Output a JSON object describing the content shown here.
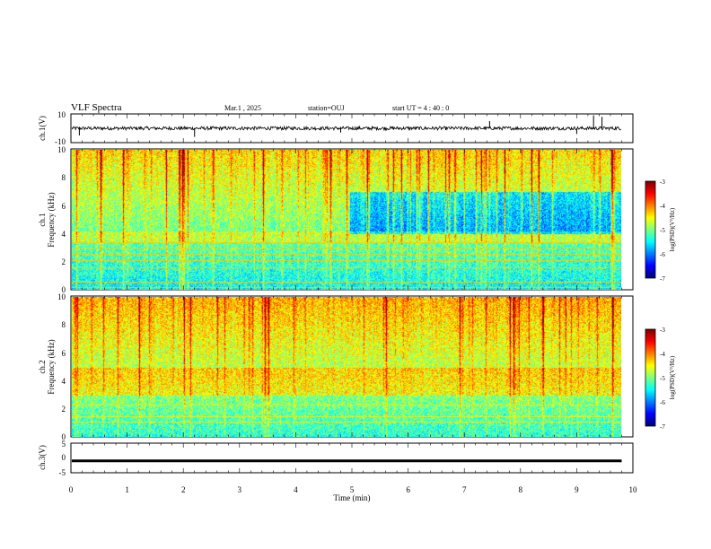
{
  "header": {
    "title": "VLF Spectra",
    "date": "Mar.1  , 2025",
    "station": "station=OUJ",
    "start_ut": "start  UT  =   4 : 40 : 0"
  },
  "chart_data": [
    {
      "type": "line",
      "panel": "ch1-waveform",
      "ylabel": "ch.1(V)",
      "ylim": [
        -10,
        10
      ],
      "yticks": [
        "10",
        "-10"
      ],
      "xlim": [
        0,
        9.8
      ],
      "baseline": 0,
      "noise_amplitude": 1.2,
      "spikes": [
        {
          "x": 0.15,
          "y": -5
        },
        {
          "x": 2.2,
          "y": -6
        },
        {
          "x": 4.8,
          "y": -3
        },
        {
          "x": 7.45,
          "y": 5
        },
        {
          "x": 9.0,
          "y": -4
        },
        {
          "x": 9.3,
          "y": 9
        },
        {
          "x": 9.45,
          "y": 8
        }
      ]
    },
    {
      "type": "heatmap",
      "panel": "ch1-spectrogram",
      "ylabel_top": "ch.1",
      "ylabel": "Frequency  (kHz)",
      "ylim": [
        0,
        10
      ],
      "yticks": [
        "0",
        "2",
        "4",
        "6",
        "8",
        "10"
      ],
      "xlim": [
        0,
        9.8
      ],
      "colorscale": "jet",
      "clim": [
        -7,
        -3
      ],
      "colorbar_label": "log(PSD)(V²/Hz)",
      "colorbar_ticks": [
        "-3",
        "-4",
        "-5",
        "-6",
        "-7"
      ],
      "background_level": -5.6,
      "dark_band_after_min": 4.95,
      "hum_lines_khz": [
        0.2,
        0.55,
        1.6,
        2.1,
        2.55,
        3.0,
        3.4
      ],
      "hum_lines_level": -4.3
    },
    {
      "type": "heatmap",
      "panel": "ch2-spectrogram",
      "ylabel_top": "ch.2",
      "ylabel": "Frequency  (kHz)",
      "ylim": [
        0,
        10
      ],
      "yticks": [
        "0",
        "2",
        "4",
        "6",
        "8",
        "10"
      ],
      "xlim": [
        0,
        9.8
      ],
      "colorscale": "jet",
      "clim": [
        -7,
        -3
      ],
      "colorbar_label": "log(PSD)(V²/Hz)",
      "colorbar_ticks": [
        "-3",
        "-4",
        "-5",
        "-6",
        "-7"
      ],
      "background_level": -5.4,
      "hum_lines_khz": [
        1.1,
        1.5,
        2.3
      ],
      "hum_lines_level": -4.4
    },
    {
      "type": "line",
      "panel": "ch3-waveform",
      "ylabel": "ch.3(V)",
      "ylim": [
        -5,
        5
      ],
      "yticks": [
        "5",
        "0",
        "-5"
      ],
      "xlim": [
        0,
        9.8
      ],
      "baseline": -1.0
    }
  ],
  "xaxis": {
    "label": "Time  (min)",
    "range": [
      0,
      10
    ],
    "ticks": [
      "0",
      "1",
      "2",
      "3",
      "4",
      "5",
      "6",
      "7",
      "8",
      "9",
      "10"
    ]
  }
}
